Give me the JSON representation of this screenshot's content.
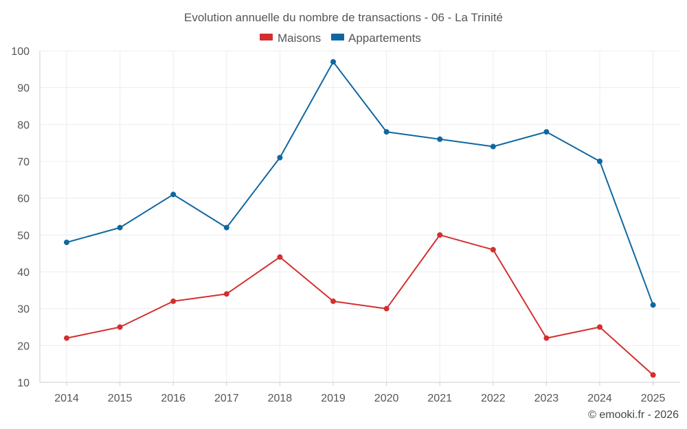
{
  "chart_data": {
    "type": "line",
    "title": "Evolution annuelle du nombre de transactions - 06 - La Trinité",
    "categories": [
      "2014",
      "2015",
      "2016",
      "2017",
      "2018",
      "2019",
      "2020",
      "2021",
      "2022",
      "2023",
      "2024",
      "2025"
    ],
    "series": [
      {
        "name": "Maisons",
        "color": "#d32f2f",
        "values": [
          22,
          25,
          32,
          34,
          44,
          32,
          30,
          50,
          46,
          22,
          25,
          12
        ]
      },
      {
        "name": "Appartements",
        "color": "#0f67a0",
        "values": [
          48,
          52,
          61,
          52,
          71,
          97,
          78,
          76,
          74,
          78,
          70,
          31
        ]
      }
    ],
    "yticks": [
      10,
      20,
      30,
      40,
      50,
      60,
      70,
      80,
      90,
      100
    ],
    "ylim": [
      10,
      100
    ],
    "xlabel": "",
    "ylabel": "",
    "grid": true,
    "legend": "top-center"
  },
  "credit": "© emooki.fr - 2026"
}
